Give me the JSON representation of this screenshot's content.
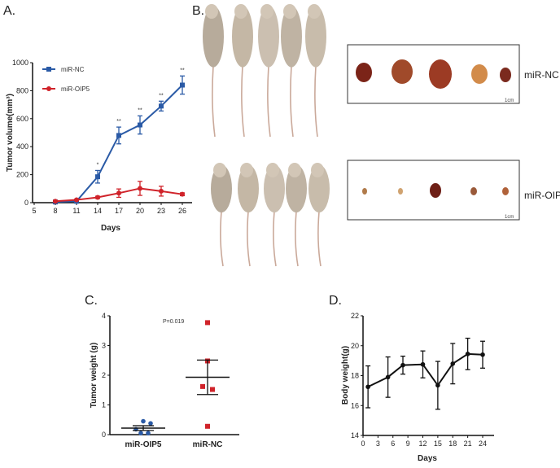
{
  "panels": {
    "a": "A.",
    "b": "B.",
    "c": "C.",
    "d": "D."
  },
  "photo": {
    "group_labels": [
      "miR-NC",
      "miR-OIP5"
    ],
    "scale_bar": "1cm",
    "mice_per_group": 5,
    "tumors_per_group": 5
  },
  "colors": {
    "nc": "#2a5aa6",
    "oip5": "#d0232a",
    "black": "#111111"
  },
  "chart_data": [
    {
      "type": "line",
      "xlabel": "Days",
      "ylabel": "Tumor volume(mm³)",
      "xlim": [
        5,
        27
      ],
      "ylim": [
        0,
        1000
      ],
      "xticks": [
        5,
        8,
        11,
        14,
        17,
        20,
        23,
        26
      ],
      "yticks": [
        0,
        200,
        400,
        600,
        800,
        1000
      ],
      "legend": "top-left",
      "x": [
        8,
        11,
        14,
        17,
        20,
        23,
        26
      ],
      "series": [
        {
          "name": "miR-NC",
          "values": [
            5,
            10,
            185,
            480,
            555,
            690,
            840
          ],
          "errors": [
            5,
            5,
            45,
            60,
            65,
            35,
            65
          ]
        },
        {
          "name": "miR-OIP5",
          "values": [
            10,
            20,
            38,
            68,
            102,
            82,
            60
          ],
          "errors": [
            5,
            5,
            8,
            30,
            50,
            35,
            10
          ]
        }
      ],
      "annotations": [
        "",
        "",
        "*",
        "**",
        "**",
        "**",
        "**"
      ]
    },
    {
      "type": "scatter",
      "xlabel": "",
      "ylabel": "Tumor weight (g)",
      "ylim": [
        0,
        4
      ],
      "yticks": [
        0,
        1,
        2,
        3,
        4
      ],
      "categories": [
        "miR-OIP5",
        "miR-NC"
      ],
      "series": [
        {
          "name": "miR-OIP5",
          "values": [
            0.45,
            0.38,
            0.18,
            0.05,
            0.05
          ],
          "mean": 0.22,
          "sem": 0.08
        },
        {
          "name": "miR-NC",
          "values": [
            3.77,
            2.48,
            1.62,
            1.52,
            0.28
          ],
          "mean": 1.93,
          "sem": 0.58
        }
      ],
      "annotation": "P=0.019"
    },
    {
      "type": "line",
      "xlabel": "Days",
      "ylabel": "Body weight(g)",
      "xlim": [
        0,
        25
      ],
      "ylim": [
        14,
        22
      ],
      "xticks": [
        0,
        3,
        6,
        9,
        12,
        15,
        18,
        21,
        24
      ],
      "yticks": [
        14,
        16,
        18,
        20,
        22
      ],
      "x": [
        1,
        5,
        8,
        12,
        15,
        18,
        21,
        24
      ],
      "series": [
        {
          "name": "Body weight",
          "values": [
            17.25,
            17.9,
            18.7,
            18.75,
            17.35,
            18.8,
            19.45,
            19.4
          ],
          "errors": [
            1.4,
            1.35,
            0.6,
            0.9,
            1.6,
            1.35,
            1.05,
            0.9
          ]
        }
      ]
    }
  ]
}
